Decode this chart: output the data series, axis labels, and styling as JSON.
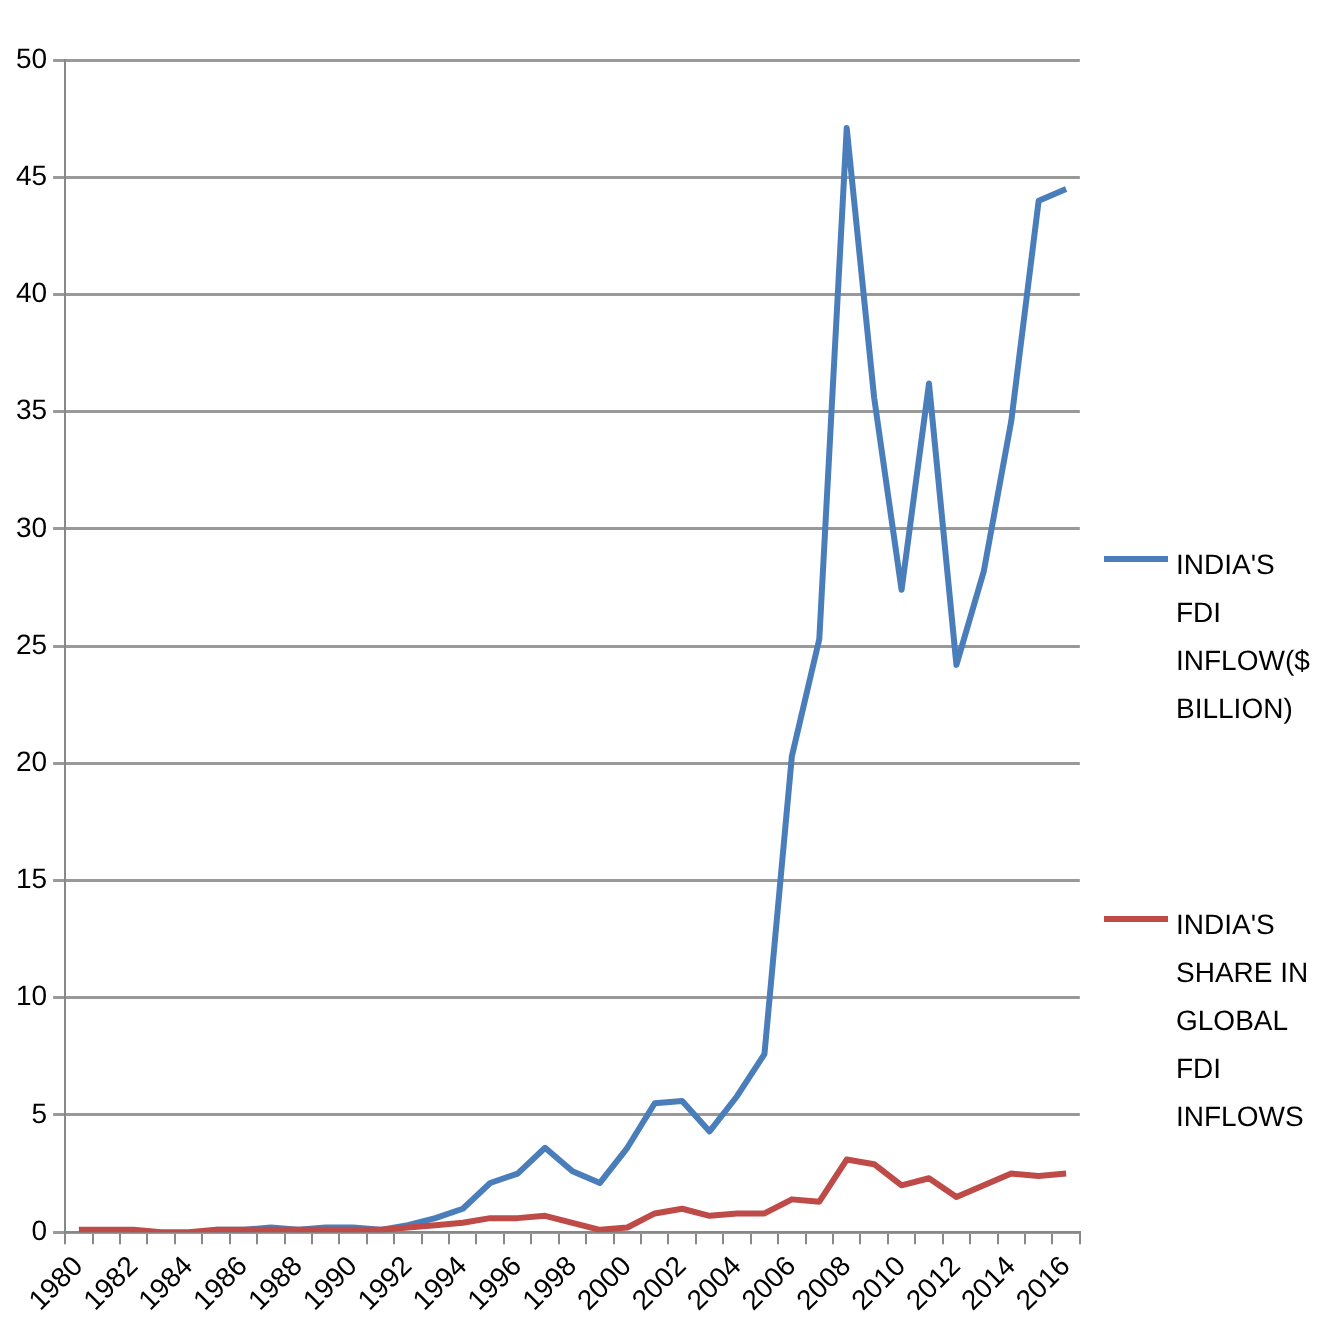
{
  "chart_data": {
    "type": "line",
    "categories": [
      "1980",
      null,
      "1982",
      null,
      "1984",
      null,
      "1986",
      null,
      "1988",
      null,
      "1990",
      null,
      "1992",
      null,
      "1994",
      null,
      "1996",
      null,
      "1998",
      null,
      "2000",
      null,
      "2002",
      null,
      "2004",
      null,
      "2006",
      null,
      "2008",
      null,
      "2010",
      null,
      "2012",
      null,
      "2014",
      null,
      "2016"
    ],
    "series": [
      {
        "name": "INDIA'S FDI INFLOW($ BILLION)",
        "color": "#4a7ebb",
        "values": [
          null,
          null,
          null,
          null,
          null,
          0.1,
          0.1,
          0.2,
          0.1,
          0.2,
          0.2,
          0.1,
          0.3,
          0.6,
          1.0,
          2.1,
          2.5,
          3.6,
          2.6,
          2.1,
          3.6,
          5.5,
          5.6,
          4.3,
          5.8,
          7.6,
          20.3,
          25.3,
          47.1,
          35.6,
          27.4,
          36.2,
          24.2,
          28.2,
          34.6,
          44.0,
          44.5
        ]
      },
      {
        "name": "INDIA'S SHARE IN GLOBAL FDI INFLOWS",
        "color": "#be4b48",
        "values": [
          0.1,
          0.1,
          0.1,
          0,
          0,
          0.1,
          0.1,
          0.1,
          0.1,
          0.1,
          0.1,
          0.1,
          0.2,
          0.3,
          0.4,
          0.6,
          0.6,
          0.7,
          0.4,
          0.1,
          0.2,
          0.8,
          1.0,
          0.7,
          0.8,
          0.8,
          1.4,
          1.3,
          3.1,
          2.9,
          2.0,
          2.3,
          1.5,
          2.0,
          2.5,
          2.4,
          2.5
        ]
      }
    ],
    "ylim": [
      0,
      50
    ],
    "yticks": [
      0,
      5,
      10,
      15,
      20,
      25,
      30,
      35,
      40,
      45,
      50
    ],
    "grid": "y",
    "legend": "right",
    "marker": "none",
    "line_style": "solid"
  }
}
